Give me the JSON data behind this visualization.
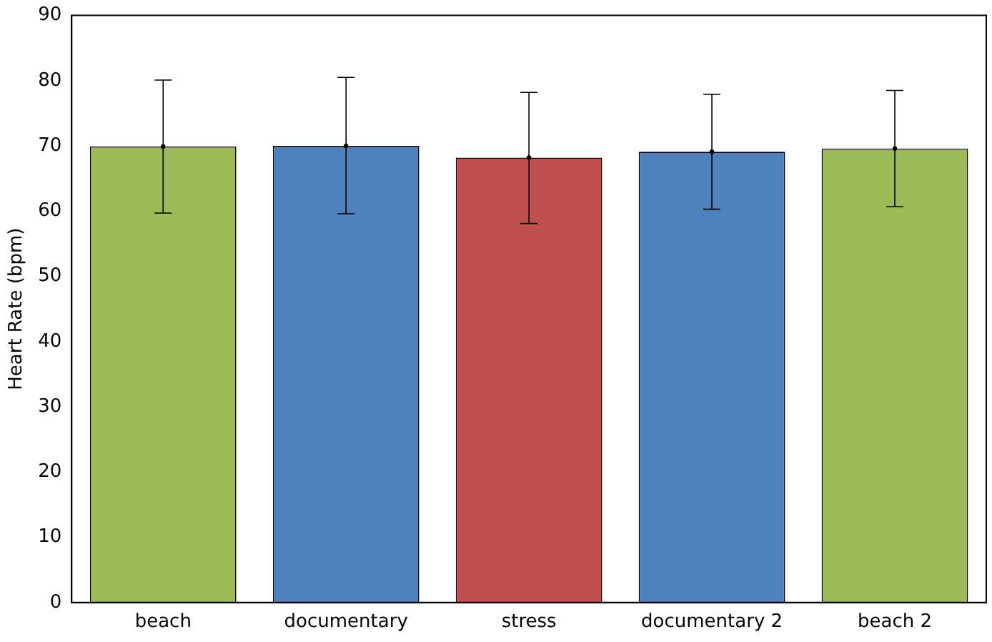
{
  "chart_data": {
    "type": "bar",
    "ylabel": "Heart Rate (bpm)",
    "categories": [
      "beach",
      "documentary",
      "stress",
      "documentary 2",
      "beach 2"
    ],
    "series": [
      {
        "type": "bar",
        "values": [
          69.9,
          70.0,
          68.2,
          69.1,
          69.6
        ],
        "colors": [
          "#9bbb59",
          "#4f81bd",
          "#c0504d",
          "#4f81bd",
          "#9bbb59"
        ],
        "errors": [
          [
            59.7,
            80.1
          ],
          [
            59.6,
            80.5
          ],
          [
            58.1,
            78.2
          ],
          [
            60.3,
            77.9
          ],
          [
            60.7,
            78.5
          ]
        ]
      },
      {
        "type": "scatter",
        "x": [
          "beach",
          "documentary",
          "stress",
          "documentary 2",
          "beach 2"
        ],
        "values": [
          69.9,
          70.0,
          68.2,
          69.1,
          69.6
        ],
        "color": "#000000"
      }
    ],
    "marker": "circle",
    "ylim": [
      0,
      90
    ],
    "yticks": [
      0,
      10,
      20,
      30,
      40,
      50,
      60,
      70,
      80,
      90
    ],
    "grid": false,
    "legend": false
  }
}
